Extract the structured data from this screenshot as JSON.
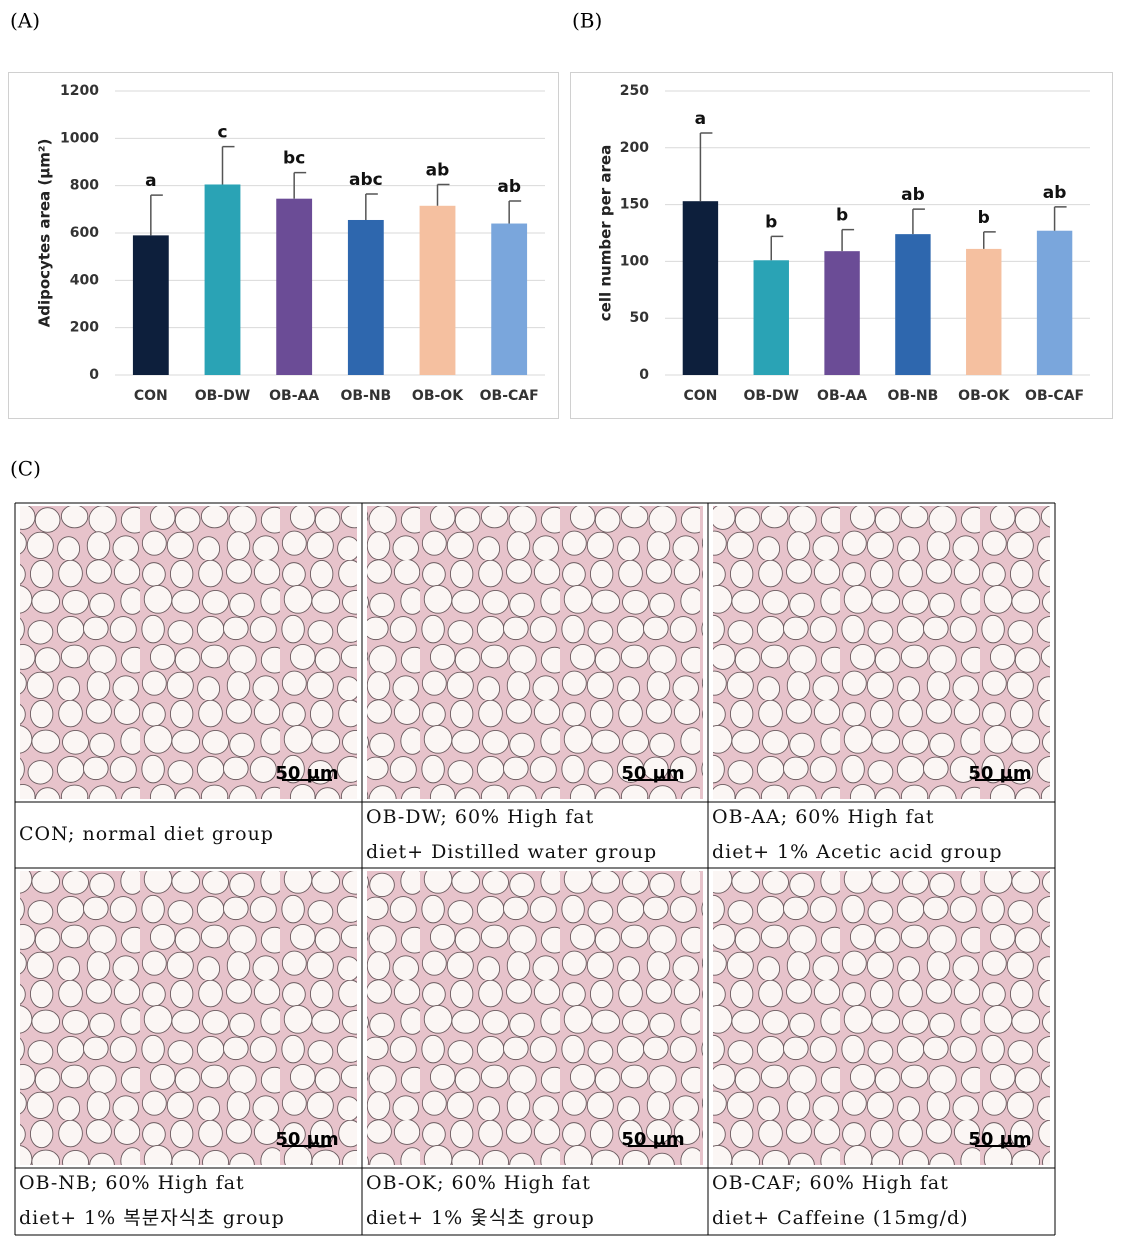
{
  "panel_labels": [
    "(A)",
    "(B)",
    "(C)"
  ],
  "chart_data": [
    {
      "type": "bar",
      "y_label": "Adipocytes area (μm²)",
      "categories": [
        "CON",
        "OB-DW",
        "OB-AA",
        "OB-NB",
        "OB-OK",
        "OB-CAF"
      ],
      "values": [
        590,
        805,
        745,
        655,
        715,
        640
      ],
      "errors": [
        170,
        160,
        110,
        110,
        90,
        95
      ],
      "annotations": [
        "a",
        "c",
        "bc",
        "abc",
        "ab",
        "ab"
      ],
      "colors": [
        "#0d1f3c",
        "#2aa3b5",
        "#6b4c96",
        "#2e67ae",
        "#f5c0a0",
        "#7aa6dc"
      ],
      "ylim": [
        0,
        1200
      ],
      "yticks": [
        0,
        200,
        400,
        600,
        800,
        1000,
        1200
      ],
      "grid": true
    },
    {
      "type": "bar",
      "y_label": "cell number per area",
      "categories": [
        "CON",
        "OB-DW",
        "OB-AA",
        "OB-NB",
        "OB-OK",
        "OB-CAF"
      ],
      "values": [
        153,
        101,
        109,
        124,
        111,
        127
      ],
      "errors": [
        60,
        21,
        19,
        22,
        15,
        21
      ],
      "annotations": [
        "a",
        "b",
        "b",
        "ab",
        "b",
        "ab"
      ],
      "colors": [
        "#0d1f3c",
        "#2aa3b5",
        "#6b4c96",
        "#2e67ae",
        "#f5c0a0",
        "#7aa6dc"
      ],
      "ylim": [
        0,
        250
      ],
      "yticks": [
        0,
        50,
        100,
        150,
        200,
        250
      ],
      "grid": true
    }
  ],
  "micrographs": {
    "scale_bar": "50 μm",
    "captions": [
      [
        "CON; normal diet group"
      ],
      [
        "OB-DW; 60% High fat",
        "diet+ Distilled water group"
      ],
      [
        "OB-AA; 60% High fat",
        "diet+ 1% Acetic acid group"
      ],
      [
        "OB-NB; 60% High fat",
        "diet+ 1% 복분자식초 group"
      ],
      [
        "OB-OK; 60% High fat",
        "diet+ 1% 옻식초 group"
      ],
      [
        "OB-CAF; 60% High fat",
        "diet+ Caffeine (15mg/d)"
      ]
    ]
  }
}
